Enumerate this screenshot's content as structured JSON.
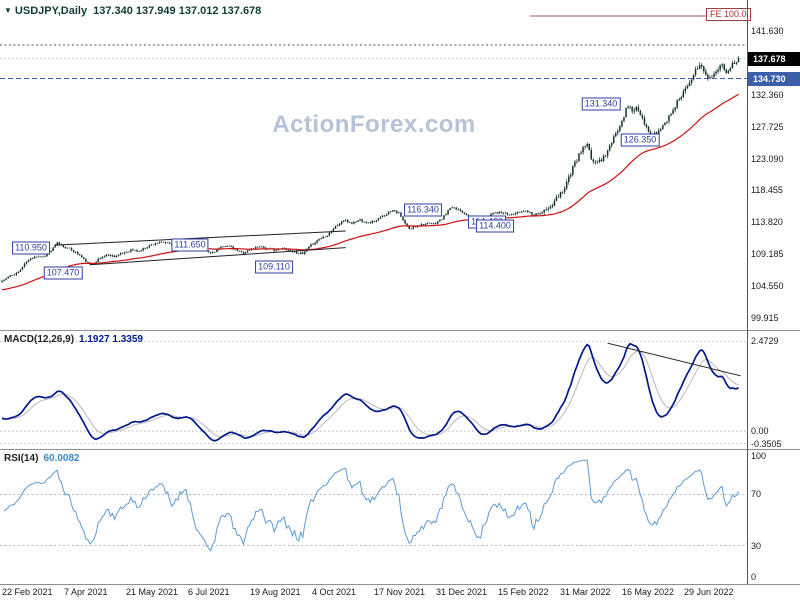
{
  "chart_data": {
    "type": "candlestick",
    "symbol_title": "USDJPY,Daily",
    "ohlc": {
      "open": "137.340",
      "high": "137.949",
      "low": "137.012",
      "close": "137.678"
    },
    "ohlc_values": "137.340 137.949 137.012 137.678",
    "watermark": "ActionForex.com",
    "fe_label": "FE 100.0",
    "x_axis": {
      "labels": [
        "22 Feb 2021",
        "7 Apr 2021",
        "21 May 2021",
        "6 Jul 2021",
        "19 Aug 2021",
        "4 Oct 2021",
        "17 Nov 2021",
        "31 Dec 2021",
        "15 Feb 2022",
        "31 Mar 2022",
        "16 May 2022",
        "29 Jun 2022"
      ]
    },
    "price_panel": {
      "ylim": [
        98.75,
        143.23
      ],
      "axis_ticks": [
        "141.630",
        "132.360",
        "127.725",
        "123.090",
        "118.455",
        "113.820",
        "109.185",
        "104.550",
        "99.915"
      ],
      "last_price": 137.678,
      "last_price_label": "137.678",
      "support_level": 134.73,
      "support_label": "134.730",
      "dotted_level": 139.6,
      "fe_line_start_day": 258,
      "ema_period": 55,
      "days_total": 361,
      "pivot_labels": [
        {
          "text": "110.950",
          "day": 14,
          "price": 110.15
        },
        {
          "text": "107.470",
          "day": 30,
          "price": 106.45
        },
        {
          "text": "111.650",
          "day": 92,
          "price": 110.55
        },
        {
          "text": "109.110",
          "day": 133,
          "price": 107.35
        },
        {
          "text": "116.340",
          "day": 206,
          "price": 115.55
        },
        {
          "text": "114.400",
          "day": 241,
          "price": 113.25,
          "double": true
        },
        {
          "text": "131.340",
          "day": 293,
          "price": 130.95
        },
        {
          "text": "126.350",
          "day": 312,
          "price": 125.85
        }
      ],
      "trendlines": [
        [
          [
            26,
            110.5
          ],
          [
            168,
            112.55
          ]
        ],
        [
          [
            43,
            107.65
          ],
          [
            168,
            110.15
          ]
        ]
      ],
      "price_anchors": [
        [
          0,
          105.3
        ],
        [
          4,
          106.0
        ],
        [
          8,
          106.6
        ],
        [
          12,
          108.1
        ],
        [
          16,
          108.9
        ],
        [
          20,
          108.8
        ],
        [
          24,
          109.7
        ],
        [
          27,
          110.8
        ],
        [
          30,
          110.3
        ],
        [
          34,
          109.8
        ],
        [
          38,
          109.0
        ],
        [
          43,
          107.6
        ],
        [
          47,
          108.4
        ],
        [
          51,
          109.1
        ],
        [
          55,
          108.9
        ],
        [
          59,
          109.3
        ],
        [
          63,
          109.8
        ],
        [
          67,
          109.6
        ],
        [
          71,
          110.3
        ],
        [
          75,
          110.8
        ],
        [
          79,
          110.9
        ],
        [
          83,
          110.6
        ],
        [
          87,
          111.1
        ],
        [
          90,
          111.5
        ],
        [
          94,
          110.6
        ],
        [
          98,
          109.9
        ],
        [
          102,
          109.3
        ],
        [
          106,
          110.0
        ],
        [
          110,
          110.5
        ],
        [
          114,
          109.8
        ],
        [
          118,
          109.4
        ],
        [
          122,
          109.9
        ],
        [
          126,
          110.4
        ],
        [
          130,
          109.9
        ],
        [
          134,
          109.8
        ],
        [
          138,
          110.0
        ],
        [
          142,
          109.6
        ],
        [
          147,
          109.2
        ],
        [
          151,
          110.5
        ],
        [
          155,
          111.4
        ],
        [
          159,
          112.0
        ],
        [
          163,
          113.2
        ],
        [
          167,
          114.1
        ],
        [
          171,
          113.7
        ],
        [
          175,
          114.2
        ],
        [
          179,
          113.7
        ],
        [
          183,
          114.1
        ],
        [
          187,
          114.9
        ],
        [
          191,
          115.7
        ],
        [
          194,
          115.1
        ],
        [
          197,
          113.6
        ],
        [
          199,
          112.8
        ],
        [
          203,
          113.4
        ],
        [
          207,
          113.6
        ],
        [
          211,
          113.6
        ],
        [
          215,
          114.3
        ],
        [
          219,
          115.9
        ],
        [
          223,
          115.7
        ],
        [
          227,
          115.0
        ],
        [
          230,
          114.4
        ],
        [
          233,
          113.8
        ],
        [
          237,
          114.6
        ],
        [
          240,
          115.3
        ],
        [
          244,
          115.2
        ],
        [
          248,
          114.9
        ],
        [
          252,
          115.2
        ],
        [
          256,
          115.6
        ],
        [
          260,
          114.9
        ],
        [
          264,
          115.3
        ],
        [
          268,
          115.9
        ],
        [
          272,
          117.6
        ],
        [
          275,
          119.0
        ],
        [
          278,
          121.0
        ],
        [
          281,
          123.0
        ],
        [
          284,
          124.6
        ],
        [
          286,
          125.0
        ],
        [
          288,
          123.0
        ],
        [
          291,
          122.5
        ],
        [
          294,
          123.3
        ],
        [
          297,
          124.8
        ],
        [
          300,
          126.6
        ],
        [
          303,
          128.8
        ],
        [
          306,
          130.8
        ],
        [
          308,
          130.1
        ],
        [
          310,
          130.4
        ],
        [
          312,
          129.3
        ],
        [
          314,
          128.0
        ],
        [
          316,
          126.9
        ],
        [
          319,
          126.6
        ],
        [
          322,
          127.4
        ],
        [
          325,
          128.7
        ],
        [
          328,
          130.3
        ],
        [
          331,
          131.8
        ],
        [
          334,
          133.3
        ],
        [
          337,
          134.9
        ],
        [
          340,
          136.2
        ],
        [
          342,
          136.6
        ],
        [
          344,
          135.2
        ],
        [
          347,
          134.9
        ],
        [
          350,
          135.9
        ],
        [
          352,
          136.7
        ],
        [
          354,
          135.8
        ],
        [
          356,
          136.4
        ],
        [
          358,
          137.1
        ],
        [
          360,
          137.65
        ]
      ]
    },
    "macd_panel": {
      "legend": "MACD(12,26,9)",
      "values": "1.1927 1.3359",
      "fast": 12,
      "slow": 26,
      "signal": 9,
      "ticks": [
        {
          "value": 2.4729,
          "label": "2.4729"
        },
        {
          "value": 0,
          "label": "0.00"
        },
        {
          "value": -0.3505,
          "label": "-0.3505"
        }
      ],
      "trendline": [
        [
          296,
          2.42
        ],
        [
          361,
          1.52
        ]
      ]
    },
    "rsi_panel": {
      "legend": "RSI(14)",
      "value": "60.0082",
      "period": 14,
      "levels": [
        70,
        30
      ],
      "ticks": [
        {
          "value": 100,
          "label": "100"
        },
        {
          "value": 70,
          "label": "70"
        },
        {
          "value": 30,
          "label": "30"
        },
        {
          "value": 0,
          "label": "0"
        }
      ]
    },
    "colors": {
      "candle": "#14312a",
      "ema": "#cc1111",
      "macd_line": "#001a8c",
      "macd_signal": "#b9b9b9",
      "rsi_line": "#5b9bd5",
      "support": "#3a5fa8",
      "pivot": "#2c3fa0",
      "watermark": "#b6c2d6"
    }
  }
}
